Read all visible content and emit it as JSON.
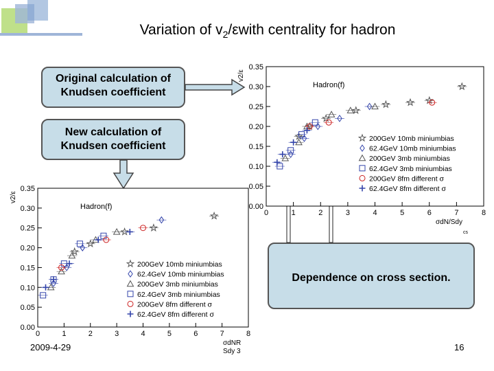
{
  "slide": {
    "title_pre": "Variation of  v",
    "title_sub": "2",
    "title_post": "/εwith centrality for hadron",
    "date": "2009-4-29",
    "page_number": "16",
    "callout_original": "Original calculation of Knudsen coefficient",
    "callout_new": "New calculation of Knudsen coefficient",
    "callout_dependence": "Dependence on cross section.",
    "colors": {
      "callout_fill": "#c7dde8",
      "red": "#cc2222",
      "blue": "#3344aa",
      "gray": "#555555"
    }
  },
  "chart_data": [
    {
      "type": "scatter",
      "panel": "original",
      "label": "Hadron(f)",
      "ylabel": "v2/ε",
      "xlabel": "σdN/Sdy",
      "xlabel_sub": "cs",
      "xlim": [
        0,
        8
      ],
      "ylim": [
        0,
        0.35
      ],
      "xticks": [
        "0",
        "1",
        "2",
        "3",
        "4",
        "5",
        "6",
        "7",
        "8"
      ],
      "yticks": [
        "0.00",
        "0.05",
        "0.10",
        "0.15",
        "0.20",
        "0.25",
        "0.30",
        "0.35"
      ],
      "legend": [
        "200GeV  10mb miniumbias",
        "62.4GeV 10mb miniumbias",
        "200GeV    3mb miniumbias",
        "62.4GeV   3mb miniumbias",
        "200GeV    8fm   different σ",
        "62.4GeV   8fm   different σ"
      ],
      "series": [
        {
          "name": "200GeV  10mb miniumbias",
          "marker": "star",
          "color": "#555555",
          "x": [
            1.2,
            1.6,
            2.2,
            3.3,
            4.4,
            5.3,
            6.0,
            7.2
          ],
          "y": [
            0.175,
            0.2,
            0.22,
            0.24,
            0.255,
            0.26,
            0.265,
            0.3
          ]
        },
        {
          "name": "62.4GeV 10mb miniumbias",
          "marker": "diamond",
          "color": "#3344aa",
          "x": [
            0.9,
            1.4,
            1.9,
            2.7,
            3.8
          ],
          "y": [
            0.13,
            0.17,
            0.2,
            0.22,
            0.25
          ]
        },
        {
          "name": "200GeV    3mb miniumbias",
          "marker": "triangle",
          "color": "#555555",
          "x": [
            0.7,
            1.2,
            1.5,
            2.4,
            3.1,
            4.0
          ],
          "y": [
            0.12,
            0.16,
            0.2,
            0.23,
            0.24,
            0.25
          ]
        },
        {
          "name": "62.4GeV   3mb miniumbias",
          "marker": "square",
          "color": "#3344aa",
          "x": [
            0.5,
            0.9,
            1.3,
            1.8
          ],
          "y": [
            0.1,
            0.14,
            0.18,
            0.21
          ]
        },
        {
          "name": "200GeV    8fm   different σ",
          "marker": "circle",
          "color": "#cc2222",
          "x": [
            1.6,
            2.3,
            6.1
          ],
          "y": [
            0.2,
            0.21,
            0.26
          ]
        },
        {
          "name": "62.4GeV   8fm   different σ",
          "marker": "cross",
          "color": "#3344aa",
          "x": [
            0.4,
            0.6,
            1.0,
            1.5
          ],
          "y": [
            0.11,
            0.13,
            0.16,
            0.19
          ]
        }
      ]
    },
    {
      "type": "scatter",
      "panel": "new",
      "label": "Hadron(f)",
      "ylabel": "v2/ε",
      "xlabel": "σdNR",
      "xlabel2": "Sdy 3",
      "xlim": [
        0,
        8
      ],
      "ylim": [
        0,
        0.35
      ],
      "xticks": [
        "0",
        "1",
        "2",
        "3",
        "4",
        "5",
        "6",
        "7",
        "8"
      ],
      "yticks": [
        "0.00",
        "0.05",
        "0.10",
        "0.15",
        "0.20",
        "0.25",
        "0.30",
        "0.35"
      ],
      "legend": [
        "200GeV  10mb miniumbias",
        "62.4GeV 10mb miniumbias",
        "200GeV    3mb miniumbias",
        "62.4GeV   3mb miniumbias",
        "200GeV    8fm   different σ",
        "62.4GeV   8fm   different σ"
      ],
      "series": [
        {
          "name": "200GeV  10mb miniumbias",
          "marker": "star",
          "color": "#555555",
          "x": [
            1.4,
            2.0,
            3.3,
            4.4,
            6.7
          ],
          "y": [
            0.19,
            0.21,
            0.24,
            0.25,
            0.28
          ]
        },
        {
          "name": "62.4GeV 10mb miniumbias",
          "marker": "diamond",
          "color": "#3344aa",
          "x": [
            0.6,
            1.1,
            1.7,
            4.7
          ],
          "y": [
            0.11,
            0.15,
            0.2,
            0.27
          ]
        },
        {
          "name": "200GeV    3mb miniumbias",
          "marker": "triangle",
          "color": "#555555",
          "x": [
            0.5,
            0.9,
            1.3,
            2.2,
            3.0
          ],
          "y": [
            0.1,
            0.14,
            0.18,
            0.22,
            0.24
          ]
        },
        {
          "name": "62.4GeV   3mb miniumbias",
          "marker": "square",
          "color": "#3344aa",
          "x": [
            0.2,
            0.6,
            1.0,
            1.6,
            2.5
          ],
          "y": [
            0.08,
            0.12,
            0.16,
            0.21,
            0.23
          ]
        },
        {
          "name": "200GeV    8fm   different σ",
          "marker": "circle",
          "color": "#cc2222",
          "x": [
            0.9,
            2.6,
            4.0
          ],
          "y": [
            0.15,
            0.22,
            0.25
          ]
        },
        {
          "name": "62.4GeV   8fm   different σ",
          "marker": "cross",
          "color": "#3344aa",
          "x": [
            0.3,
            0.6,
            1.2,
            2.3,
            3.5
          ],
          "y": [
            0.1,
            0.12,
            0.16,
            0.22,
            0.24
          ]
        }
      ]
    }
  ]
}
